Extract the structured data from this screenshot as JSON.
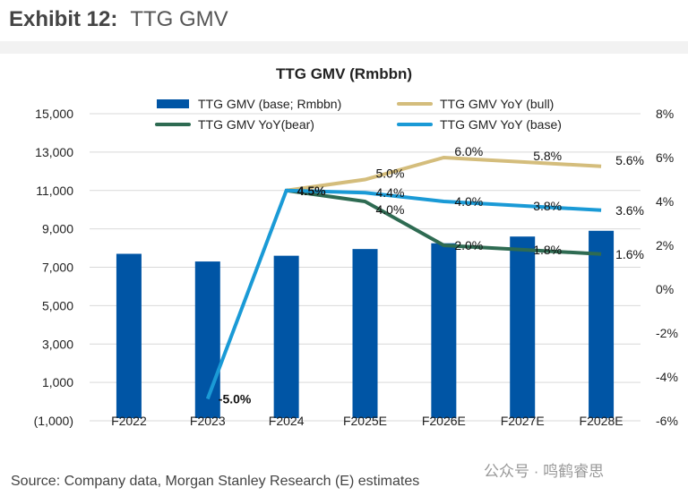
{
  "header": {
    "exhibit": "Exhibit 12:",
    "title": "TTG GMV"
  },
  "chart_data": {
    "type": "bar+line",
    "title": "TTG GMV (Rmbbn)",
    "categories": [
      "F2022",
      "F2023",
      "F2024",
      "F2025E",
      "F2026E",
      "F2027E",
      "F2028E"
    ],
    "left_axis": {
      "ylim": [
        -1000,
        15000
      ],
      "ticks": [
        15000,
        13000,
        11000,
        9000,
        7000,
        5000,
        3000,
        1000,
        -1000
      ],
      "tick_labels": [
        "15,000",
        "13,000",
        "11,000",
        "9,000",
        "7,000",
        "5,000",
        "3,000",
        "1,000",
        "(1,000)"
      ]
    },
    "right_axis": {
      "ylim": [
        -6,
        8
      ],
      "ticks": [
        8,
        6,
        4,
        2,
        0,
        -2,
        -4,
        -6
      ],
      "tick_labels": [
        "8%",
        "6%",
        "4%",
        "2%",
        "0%",
        "-2%",
        "-4%",
        "-6%"
      ]
    },
    "bars": {
      "name": "TTG GMV (base; Rmbbn)",
      "color": "#0055a5",
      "values": [
        7700,
        7300,
        7600,
        7950,
        8250,
        8600,
        8900
      ]
    },
    "series": [
      {
        "name": "TTG GMV YoY (bull)",
        "color": "#d4bd7c",
        "values": [
          null,
          null,
          4.5,
          5.0,
          6.0,
          5.8,
          5.6
        ],
        "labels": [
          null,
          null,
          null,
          "5.0%",
          "6.0%",
          "5.8%",
          "5.6%"
        ]
      },
      {
        "name": "TTG GMV YoY(bear)",
        "color": "#2e6b52",
        "values": [
          null,
          null,
          4.5,
          4.0,
          2.0,
          1.8,
          1.6
        ],
        "labels": [
          null,
          null,
          null,
          "4.0%",
          "2.0%",
          "1.8%",
          "1.6%"
        ]
      },
      {
        "name": "TTG GMV YoY (base)",
        "color": "#1a9ad6",
        "values": [
          null,
          -5.0,
          4.5,
          4.4,
          4.0,
          3.8,
          3.6
        ],
        "labels": [
          null,
          "-5.0%",
          "4.5%",
          "4.4%",
          "4.0%",
          "3.8%",
          "3.6%"
        ]
      }
    ],
    "legend_order": [
      0,
      1,
      2,
      3
    ],
    "legend_placement": "top"
  },
  "footer": {
    "source": "Source: Company data, Morgan Stanley Research (E) estimates",
    "watermark": "公众号 · 鸣鹤睿思"
  }
}
